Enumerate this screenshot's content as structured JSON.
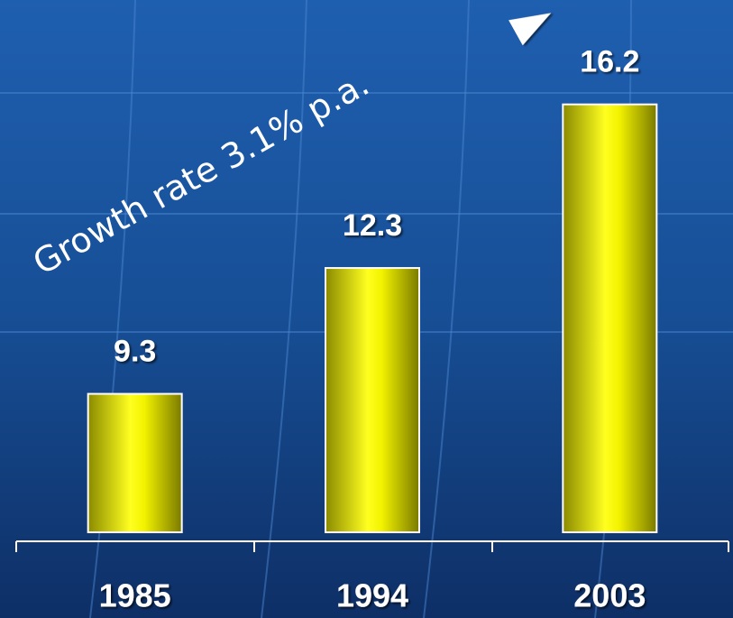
{
  "chart_data": {
    "type": "bar",
    "categories": [
      "1985",
      "1994",
      "2003"
    ],
    "values": [
      9.3,
      12.3,
      16.2
    ],
    "color": "#f2f200",
    "ylim": [
      6,
      18
    ],
    "annotation": "Growth rate 3.1% p.a."
  }
}
